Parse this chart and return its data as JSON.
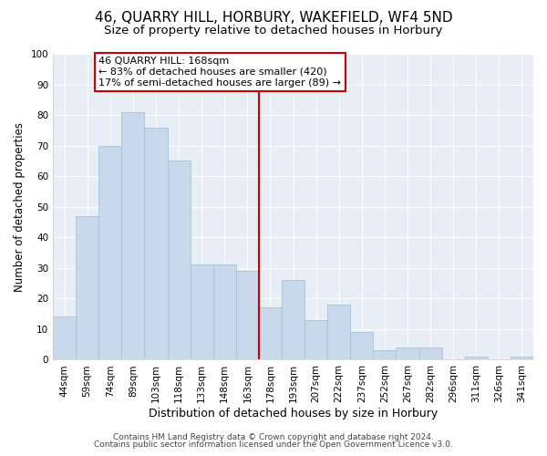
{
  "title": "46, QUARRY HILL, HORBURY, WAKEFIELD, WF4 5ND",
  "subtitle": "Size of property relative to detached houses in Horbury",
  "xlabel": "Distribution of detached houses by size in Horbury",
  "ylabel": "Number of detached properties",
  "bar_labels": [
    "44sqm",
    "59sqm",
    "74sqm",
    "89sqm",
    "103sqm",
    "118sqm",
    "133sqm",
    "148sqm",
    "163sqm",
    "178sqm",
    "193sqm",
    "207sqm",
    "222sqm",
    "237sqm",
    "252sqm",
    "267sqm",
    "282sqm",
    "296sqm",
    "311sqm",
    "326sqm",
    "341sqm"
  ],
  "bar_values": [
    14,
    47,
    70,
    81,
    76,
    65,
    31,
    31,
    29,
    17,
    26,
    13,
    18,
    9,
    3,
    4,
    4,
    0,
    1,
    0,
    1
  ],
  "bar_color": "#c8d9ec",
  "bar_edge_color": "#a8c0d8",
  "vline_color": "#cc0000",
  "annotation_line1": "46 QUARRY HILL: 168sqm",
  "annotation_line2": "← 83% of detached houses are smaller (420)",
  "annotation_line3": "17% of semi-detached houses are larger (89) →",
  "ylim": [
    0,
    100
  ],
  "yticks": [
    0,
    10,
    20,
    30,
    40,
    50,
    60,
    70,
    80,
    90,
    100
  ],
  "footer1": "Contains HM Land Registry data © Crown copyright and database right 2024.",
  "footer2": "Contains public sector information licensed under the Open Government Licence v3.0.",
  "bg_color": "#ffffff",
  "plot_bg_color": "#e8eef5",
  "grid_color": "#ffffff",
  "title_fontsize": 11,
  "subtitle_fontsize": 9.5,
  "tick_fontsize": 7.5,
  "ylabel_fontsize": 8.5,
  "xlabel_fontsize": 9,
  "footer_fontsize": 6.5,
  "vline_bar_index": 8
}
